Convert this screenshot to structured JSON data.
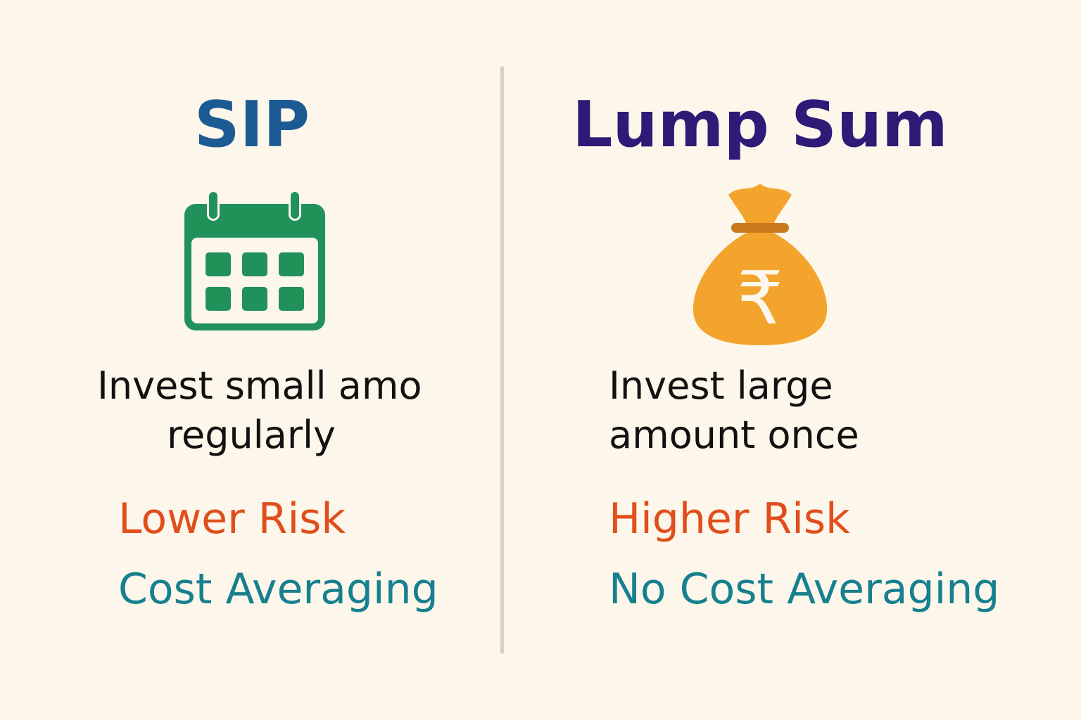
{
  "sip": {
    "title": "SIP",
    "icon": "calendar-icon",
    "description_line1": "Invest small amo",
    "description_line2": "regularly",
    "risk": "Lower Risk",
    "averaging": "Cost Averaging"
  },
  "lump_sum": {
    "title": "Lump Sum",
    "icon": "money-bag-rupee-icon",
    "description_line1": "Invest large",
    "description_line2": "amount once",
    "risk": "Higher Risk",
    "averaging": "No Cost Averaging",
    "currency_symbol": "₹"
  },
  "colors": {
    "background": "#fdf6ea",
    "sip_title": "#1c5a93",
    "lump_title": "#2f1a78",
    "risk": "#e04e1c",
    "averaging": "#17808f",
    "calendar": "#21915a",
    "money_bag": "#f2a42c"
  }
}
